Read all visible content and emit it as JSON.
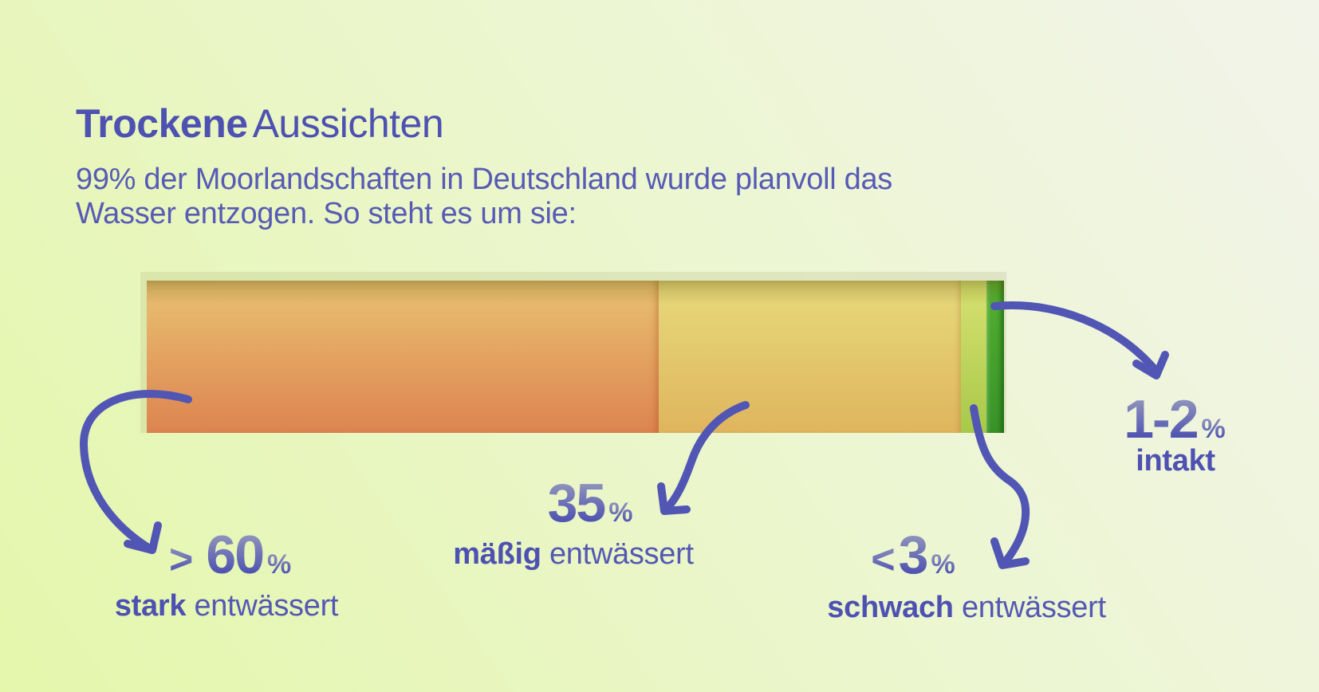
{
  "header": {
    "title_bold": "Trockene",
    "title_regular": "Aussichten",
    "subtitle_line1": "99% der Moorlandschaften in Deutschland wurde planvoll das",
    "subtitle_line2": "Wasser entzogen. So steht es um sie:"
  },
  "chart_data": {
    "type": "bar",
    "variant": "horizontal-stacked-100percent",
    "title": "Trockene Aussichten",
    "subtitle": "99% der Moorlandschaften in Deutschland wurde planvoll das Wasser entzogen. So steht es um sie:",
    "unit": "%",
    "axis": "none",
    "legend_position": "callouts-with-arrows",
    "segments": [
      {
        "category": "stark entwässert",
        "value_label": "> 60",
        "value": 60,
        "width_pct": 59.7,
        "color_top": "#e9c272",
        "color_bottom": "#dd8450"
      },
      {
        "category": "mäßig entwässert",
        "value_label": "35",
        "value": 35,
        "width_pct": 35.3,
        "color_top": "#e7da7c",
        "color_bottom": "#dfb55e"
      },
      {
        "category": "schwach entwässert",
        "value_label": "< 3",
        "value": 3,
        "width_pct": 3.0,
        "color_top": "#d8e171",
        "color_bottom": "#a7c94a"
      },
      {
        "category": "intakt",
        "value_label": "1-2",
        "value": 2,
        "width_pct": 2.0,
        "color_top": "#55b031",
        "color_bottom": "#389328"
      }
    ]
  },
  "callouts": [
    {
      "prefix": ">",
      "number": "60",
      "unit": "%",
      "label_bold": "stark",
      "label_rest": "entwässert"
    },
    {
      "number": "35",
      "unit": "%",
      "label_bold": "mäßig",
      "label_rest": "entwässert"
    },
    {
      "prefix": "<",
      "number": "3",
      "unit": "%",
      "label_bold": "schwach",
      "label_rest": "entwässert"
    },
    {
      "number": "1-2",
      "unit": "%",
      "label_bold": "intakt",
      "label_rest": ""
    }
  ],
  "colors": {
    "text_primary": "#5054b2",
    "text_title": "#4d51b1",
    "number_gradient_top": "#9ba0be",
    "number_gradient_bottom": "#5054b2",
    "arrow": "#5156b4",
    "background_bottom_left": "#e4f7ab",
    "background_top_right": "#f2f4ea",
    "bar_track": "rgba(150,152,90,0.16)"
  }
}
